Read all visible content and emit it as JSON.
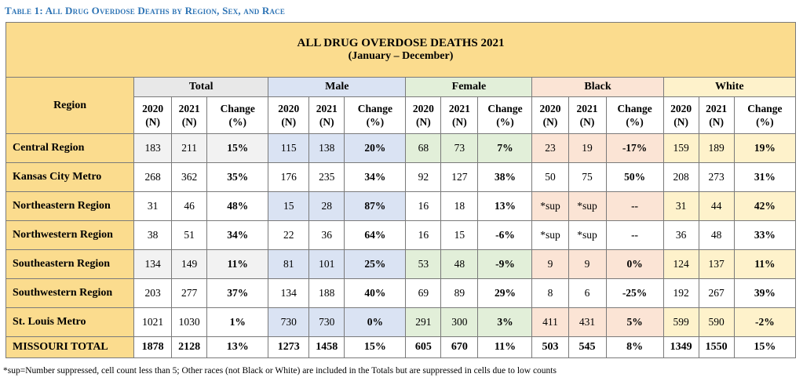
{
  "caption": "Table 1: All Drug Overdose Deaths by Region, Sex, and Race",
  "title": "ALL DRUG OVERDOSE DEATHS 2021",
  "subtitle": "(January – December)",
  "region_header": "Region",
  "groups": [
    "Total",
    "Male",
    "Female",
    "Black",
    "White"
  ],
  "col_labels": {
    "y2020": "2020",
    "y2021": "2021",
    "change": "Change",
    "n": "(N)",
    "pct": "(%)"
  },
  "rows": [
    {
      "region": "Central Region",
      "v": [
        "183",
        "211",
        "15%",
        "115",
        "138",
        "20%",
        "68",
        "73",
        "7%",
        "23",
        "19",
        "-17%",
        "159",
        "189",
        "19%"
      ]
    },
    {
      "region": "Kansas City Metro",
      "v": [
        "268",
        "362",
        "35%",
        "176",
        "235",
        "34%",
        "92",
        "127",
        "38%",
        "50",
        "75",
        "50%",
        "208",
        "273",
        "31%"
      ]
    },
    {
      "region": "Northeastern Region",
      "v": [
        "31",
        "46",
        "48%",
        "15",
        "28",
        "87%",
        "16",
        "18",
        "13%",
        "*sup",
        "*sup",
        "--",
        "31",
        "44",
        "42%"
      ]
    },
    {
      "region": "Northwestern Region",
      "v": [
        "38",
        "51",
        "34%",
        "22",
        "36",
        "64%",
        "16",
        "15",
        "-6%",
        "*sup",
        "*sup",
        "--",
        "36",
        "48",
        "33%"
      ]
    },
    {
      "region": "Southeastern Region",
      "v": [
        "134",
        "149",
        "11%",
        "81",
        "101",
        "25%",
        "53",
        "48",
        "-9%",
        "9",
        "9",
        "0%",
        "124",
        "137",
        "11%"
      ]
    },
    {
      "region": "Southwestern Region",
      "v": [
        "203",
        "277",
        "37%",
        "134",
        "188",
        "40%",
        "69",
        "89",
        "29%",
        "8",
        "6",
        "-25%",
        "192",
        "267",
        "39%"
      ]
    },
    {
      "region": "St. Louis Metro",
      "v": [
        "1021",
        "1030",
        "1%",
        "730",
        "730",
        "0%",
        "291",
        "300",
        "3%",
        "411",
        "431",
        "5%",
        "599",
        "590",
        "-2%"
      ]
    }
  ],
  "total_row": {
    "region": "MISSOURI TOTAL",
    "v": [
      "1878",
      "2128",
      "13%",
      "1273",
      "1458",
      "15%",
      "605",
      "670",
      "11%",
      "503",
      "545",
      "8%",
      "1349",
      "1550",
      "15%"
    ]
  },
  "footnote": "*sup=Number suppressed, cell count less than 5; Other races (not Black or White) are included in the Totals but are suppressed in cells due to low counts"
}
